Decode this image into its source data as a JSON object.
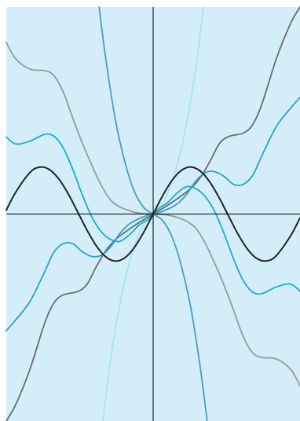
{
  "chart_data": {
    "type": "line",
    "title": "",
    "xlabel": "",
    "ylabel": "",
    "xlim": [
      -6.2,
      6.2
    ],
    "ylim": [
      -4.4,
      4.4
    ],
    "grid": false,
    "legend": "none",
    "axes": {
      "zero_lines": true,
      "color": "#000000"
    },
    "background": "#d4eef9",
    "series": [
      {
        "color": "#222222",
        "width": 2.0,
        "points": [
          [
            -6.2,
            0.083
          ],
          [
            -5.8,
            0.465
          ],
          [
            -5.2,
            0.883
          ],
          [
            -4.8,
            0.996
          ],
          [
            -4.4,
            0.952
          ],
          [
            -4.0,
            0.757
          ],
          [
            -3.6,
            0.443
          ],
          [
            -3.2,
            0.058
          ],
          [
            -2.8,
            -0.335
          ],
          [
            -2.4,
            -0.675
          ],
          [
            -2.0,
            -0.909
          ],
          [
            -1.6,
            -1.0
          ],
          [
            -1.2,
            -0.932
          ],
          [
            -0.8,
            -0.717
          ],
          [
            -0.4,
            -0.389
          ],
          [
            0.0,
            0.0
          ],
          [
            0.4,
            0.389
          ],
          [
            0.8,
            0.717
          ],
          [
            1.2,
            0.932
          ],
          [
            1.6,
            1.0
          ],
          [
            2.0,
            0.909
          ],
          [
            2.4,
            0.675
          ],
          [
            2.8,
            0.335
          ],
          [
            3.2,
            -0.058
          ],
          [
            3.6,
            -0.443
          ],
          [
            4.0,
            -0.757
          ],
          [
            4.4,
            -0.952
          ],
          [
            4.8,
            -0.996
          ],
          [
            5.2,
            -0.883
          ],
          [
            5.8,
            -0.465
          ],
          [
            6.2,
            -0.083
          ]
        ]
      },
      {
        "color": "#1aaad6",
        "width": 1.8,
        "points": [
          [
            -6.2,
            1.64
          ],
          [
            -5.8,
            1.49
          ],
          [
            -5.2,
            1.55
          ],
          [
            -4.6,
            1.69
          ],
          [
            -4.2,
            1.66
          ],
          [
            -3.8,
            1.41
          ],
          [
            -3.4,
            0.96
          ],
          [
            -3.0,
            0.42
          ],
          [
            -2.6,
            -0.05
          ],
          [
            -2.2,
            -0.37
          ],
          [
            -1.8,
            -0.54
          ],
          [
            -1.4,
            -0.58
          ],
          [
            -1.0,
            -0.44
          ],
          [
            -0.6,
            -0.24
          ],
          [
            -0.2,
            -0.11
          ],
          [
            0.0,
            0.0
          ],
          [
            0.2,
            0.11
          ],
          [
            0.6,
            0.24
          ],
          [
            1.0,
            0.44
          ],
          [
            1.4,
            0.58
          ],
          [
            1.8,
            0.54
          ],
          [
            2.2,
            0.37
          ],
          [
            2.6,
            0.05
          ],
          [
            3.0,
            -0.42
          ],
          [
            3.4,
            -0.96
          ],
          [
            3.8,
            -1.41
          ],
          [
            4.2,
            -1.66
          ],
          [
            4.6,
            -1.69
          ],
          [
            5.2,
            -1.55
          ],
          [
            5.8,
            -1.49
          ],
          [
            6.2,
            -1.64
          ]
        ]
      },
      {
        "color": "#2c9fcc",
        "width": 1.8,
        "points": [
          [
            -6.2,
            -2.48
          ],
          [
            -5.8,
            -2.25
          ],
          [
            -5.2,
            -1.86
          ],
          [
            -4.6,
            -1.25
          ],
          [
            -4.2,
            -0.82
          ],
          [
            -3.8,
            -0.63
          ],
          [
            -3.4,
            -0.63
          ],
          [
            -3.0,
            -0.8
          ],
          [
            -2.6,
            -0.9
          ],
          [
            -2.2,
            -0.88
          ],
          [
            -1.8,
            -0.7
          ],
          [
            -1.4,
            -0.41
          ],
          [
            -1.0,
            -0.21
          ],
          [
            -0.6,
            -0.1
          ],
          [
            -0.2,
            -0.02
          ],
          [
            0.0,
            0.0
          ],
          [
            0.2,
            0.02
          ],
          [
            0.6,
            0.1
          ],
          [
            1.0,
            0.21
          ],
          [
            1.4,
            0.41
          ],
          [
            1.8,
            0.7
          ],
          [
            2.2,
            0.88
          ],
          [
            2.6,
            0.9
          ],
          [
            3.0,
            0.8
          ],
          [
            3.4,
            0.63
          ],
          [
            3.8,
            0.63
          ],
          [
            4.2,
            0.82
          ],
          [
            4.6,
            1.25
          ],
          [
            5.2,
            1.86
          ],
          [
            5.8,
            2.25
          ],
          [
            6.2,
            2.48
          ]
        ]
      },
      {
        "color": "#999999",
        "width": 1.8,
        "points": [
          [
            -6.2,
            3.65
          ],
          [
            -5.8,
            3.3
          ],
          [
            -5.2,
            3.08
          ],
          [
            -4.6,
            3.05
          ],
          [
            -4.2,
            2.95
          ],
          [
            -3.8,
            2.6
          ],
          [
            -3.4,
            2.05
          ],
          [
            -3.0,
            1.52
          ],
          [
            -2.6,
            1.05
          ],
          [
            -2.2,
            0.62
          ],
          [
            -1.8,
            0.3
          ],
          [
            -1.4,
            0.15
          ],
          [
            -1.0,
            0.07
          ],
          [
            -0.6,
            0.02
          ],
          [
            0.0,
            0.0
          ],
          [
            0.6,
            -0.02
          ],
          [
            1.0,
            -0.07
          ],
          [
            1.4,
            -0.15
          ],
          [
            1.8,
            -0.3
          ],
          [
            2.2,
            -0.62
          ],
          [
            2.6,
            -1.05
          ],
          [
            3.0,
            -1.52
          ],
          [
            3.4,
            -2.05
          ],
          [
            3.8,
            -2.6
          ],
          [
            4.2,
            -2.95
          ],
          [
            4.6,
            -3.05
          ],
          [
            5.2,
            -3.08
          ],
          [
            5.8,
            -3.3
          ],
          [
            6.2,
            -3.65
          ]
        ]
      },
      {
        "color": "#6a6a6a",
        "width": 1.8,
        "points": [
          [
            -6.2,
            -4.4
          ],
          [
            -5.8,
            -4.05
          ],
          [
            -5.2,
            -3.3
          ],
          [
            -4.6,
            -2.35
          ],
          [
            -4.2,
            -1.9
          ],
          [
            -3.8,
            -1.72
          ],
          [
            -3.2,
            -1.65
          ],
          [
            -2.8,
            -1.5
          ],
          [
            -2.4,
            -1.12
          ],
          [
            -2.0,
            -0.78
          ],
          [
            -1.6,
            -0.55
          ],
          [
            -1.2,
            -0.39
          ],
          [
            -0.8,
            -0.25
          ],
          [
            -0.4,
            -0.12
          ],
          [
            0.0,
            0.0
          ],
          [
            0.4,
            0.12
          ],
          [
            0.8,
            0.25
          ],
          [
            1.2,
            0.39
          ],
          [
            1.6,
            0.55
          ],
          [
            2.0,
            0.78
          ],
          [
            2.4,
            1.12
          ],
          [
            2.8,
            1.5
          ],
          [
            3.2,
            1.65
          ],
          [
            3.8,
            1.72
          ],
          [
            4.2,
            1.9
          ],
          [
            4.6,
            2.35
          ],
          [
            5.2,
            3.3
          ],
          [
            5.8,
            4.05
          ],
          [
            6.2,
            4.4
          ]
        ]
      },
      {
        "color": "#4a9cbf",
        "width": 1.8,
        "points": [
          [
            -2.28,
            4.4
          ],
          [
            -2.0,
            3.3
          ],
          [
            -1.6,
            2.02
          ],
          [
            -1.2,
            1.12
          ],
          [
            -0.8,
            0.49
          ],
          [
            -0.4,
            0.14
          ],
          [
            0.0,
            0.0
          ],
          [
            0.4,
            -0.14
          ],
          [
            0.8,
            -0.49
          ],
          [
            1.2,
            -1.12
          ],
          [
            1.6,
            -2.02
          ],
          [
            2.0,
            -3.3
          ],
          [
            2.28,
            -4.4
          ]
        ]
      },
      {
        "color": "#aee0f4",
        "width": 1.8,
        "points": [
          [
            -2.12,
            -4.4
          ],
          [
            -1.8,
            -3.1
          ],
          [
            -1.4,
            -1.9
          ],
          [
            -1.0,
            -1.02
          ],
          [
            -0.6,
            -0.43
          ],
          [
            -0.3,
            -0.15
          ],
          [
            0.0,
            0.0
          ],
          [
            0.3,
            0.15
          ],
          [
            0.6,
            0.43
          ],
          [
            1.0,
            1.02
          ],
          [
            1.4,
            1.9
          ],
          [
            1.8,
            3.1
          ],
          [
            2.12,
            4.4
          ]
        ]
      }
    ]
  }
}
